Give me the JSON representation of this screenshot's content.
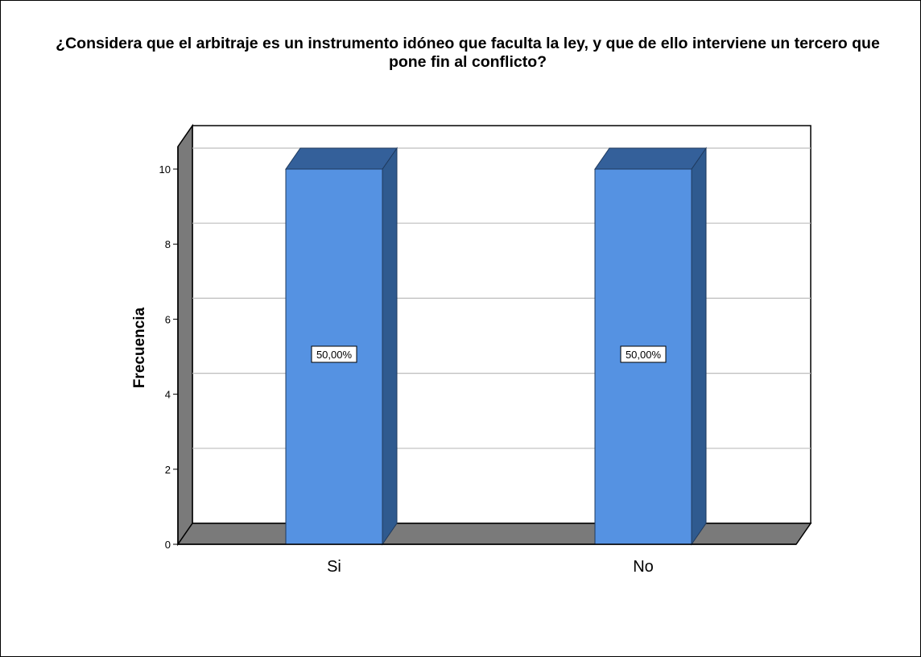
{
  "chart_data": {
    "type": "bar",
    "title_lines": [
      "¿Considera que el arbitraje es un instrumento idóneo que faculta la ley, y que de ello interviene un tercero que",
      "pone fin al conflicto?"
    ],
    "xlabel": "",
    "ylabel": "Frecuencia",
    "categories": [
      "Si",
      "No"
    ],
    "values": [
      10,
      10
    ],
    "data_labels": [
      "50,00%",
      "50,00%"
    ],
    "yticks": [
      "0",
      "2",
      "4",
      "6",
      "8",
      "10"
    ],
    "ylim": [
      0,
      10.6
    ],
    "grid": true,
    "style": "3d",
    "colors": {
      "bar_front": "#5592e2",
      "bar_side": "#2f5a8f",
      "bar_top": "#34609a",
      "wall_side": "#7a7a7a",
      "floor": "#7a7a7a",
      "gridline": "#bdbdbd"
    }
  }
}
